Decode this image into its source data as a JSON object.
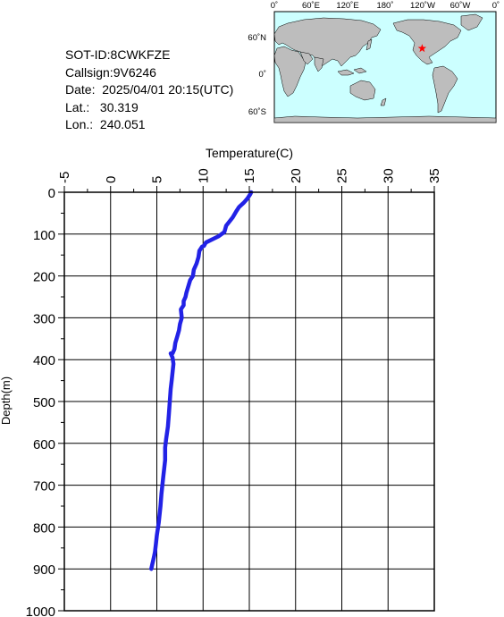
{
  "info": {
    "sot_id": "SOT-ID:8CWKFZE",
    "callsign": "Callsign:9V6246",
    "date": "Date:  2025/04/01 20:15(UTC)",
    "lat": "Lat.:   30.319",
    "lon": "Lon.:  240.051"
  },
  "map": {
    "lon_ticks": [
      "0˚",
      "60˚E",
      "120˚E",
      "180˚",
      "120˚W",
      "60˚W",
      "0˚"
    ],
    "lat_ticks": [
      "60˚N",
      "0˚",
      "60˚S"
    ],
    "ocean_color": "#ccffff",
    "land_color": "#bdbdbd",
    "marker_color": "#ff0000",
    "marker_lat": 30.319,
    "marker_lon": 240.051
  },
  "chart_data": {
    "type": "line",
    "xlabel": "Temperature(C)",
    "ylabel": "Depth(m)",
    "xlim": [
      -5,
      35
    ],
    "ylim": [
      1000,
      0
    ],
    "x_ticks": [
      -5,
      0,
      5,
      10,
      15,
      20,
      25,
      30,
      35
    ],
    "y_ticks": [
      0,
      100,
      200,
      300,
      400,
      500,
      600,
      700,
      800,
      900,
      1000
    ],
    "grid": true,
    "line_color": "#2222e6",
    "series": [
      {
        "x": [
          15.2,
          15.1,
          14.8,
          14.4,
          13.9,
          13.6,
          13.2,
          12.5,
          12.3,
          11.7,
          10.3,
          10.1,
          9.9,
          9.6,
          9.5,
          9.3,
          9.0,
          8.9,
          8.6,
          8.4,
          8.2,
          8.1,
          8.0,
          7.9,
          7.9,
          7.6,
          7.7,
          7.5,
          7.4,
          7.2,
          7.0,
          6.9,
          6.7,
          6.5,
          6.7,
          6.8,
          6.7,
          6.6,
          6.5,
          6.4,
          6.3,
          6.2,
          6.0,
          5.9,
          5.9,
          5.7,
          5.5,
          5.4,
          5.2,
          5.0,
          4.9,
          4.8,
          4.7,
          4.6,
          4.5,
          4.4
        ],
        "y": [
          0,
          5,
          15,
          25,
          35,
          45,
          60,
          80,
          95,
          105,
          120,
          128,
          130,
          140,
          155,
          170,
          185,
          200,
          210,
          225,
          240,
          250,
          255,
          260,
          270,
          280,
          300,
          315,
          330,
          345,
          360,
          375,
          385,
          385,
          395,
          410,
          430,
          450,
          470,
          500,
          530,
          560,
          590,
          610,
          640,
          680,
          720,
          750,
          790,
          820,
          840,
          860,
          870,
          880,
          890,
          900
        ]
      }
    ]
  }
}
